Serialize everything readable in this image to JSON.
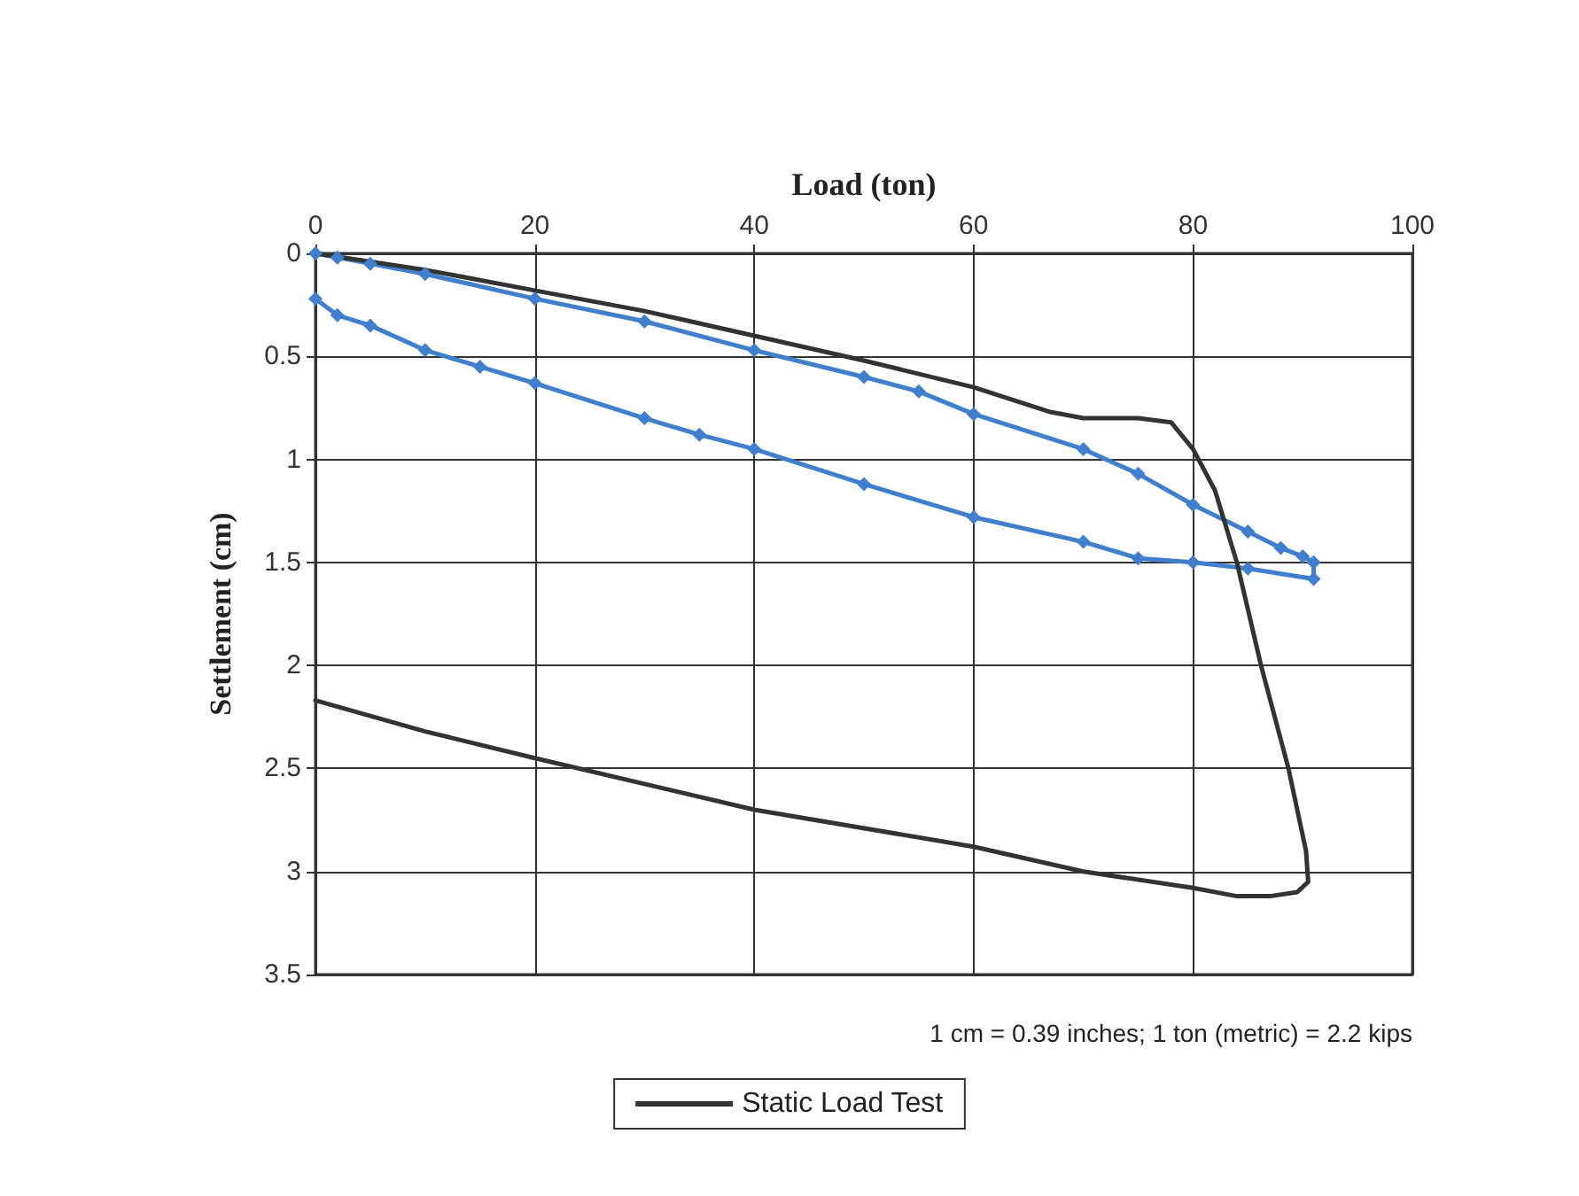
{
  "chart_data": {
    "type": "line",
    "xlabel": "Load (ton)",
    "ylabel": "Settlement (cm)",
    "xlim": [
      0,
      100
    ],
    "xticks": [
      0,
      20,
      40,
      60,
      80,
      100
    ],
    "ylim": [
      3.5,
      0
    ],
    "yticks": [
      0,
      0.5,
      1,
      1.5,
      2,
      2.5,
      3,
      3.5
    ],
    "grid": true,
    "legend": "bottom",
    "line_style": "solid",
    "annotations": [
      "1 cm = 0.39 inches; 1 ton (metric) = 2.2 kips"
    ],
    "series": [
      {
        "color": "#3f7fce",
        "marker": "diamond",
        "x": [
          0,
          2,
          5,
          10,
          20,
          30,
          40,
          50,
          55,
          60,
          70,
          75,
          80,
          85,
          88,
          90,
          91,
          91,
          85,
          80,
          75,
          70,
          60,
          50,
          40,
          35,
          30,
          20,
          15,
          10,
          5,
          2,
          0
        ],
        "values": [
          0,
          0.02,
          0.05,
          0.1,
          0.22,
          0.33,
          0.47,
          0.6,
          0.67,
          0.78,
          0.95,
          1.07,
          1.22,
          1.35,
          1.43,
          1.47,
          1.5,
          1.58,
          1.53,
          1.5,
          1.48,
          1.4,
          1.28,
          1.12,
          0.95,
          0.88,
          0.8,
          0.63,
          0.55,
          0.47,
          0.35,
          0.3,
          0.22
        ]
      },
      {
        "name": "Static Load Test",
        "color": "#333333",
        "marker": "none",
        "x": [
          0,
          10,
          20,
          30,
          40,
          50,
          60,
          67,
          70,
          75,
          78,
          80,
          82,
          84,
          86.2,
          88.7,
          90.3,
          90.5,
          89.5,
          87,
          84,
          80,
          70,
          60,
          40,
          20,
          10,
          0
        ],
        "values": [
          0,
          0.08,
          0.18,
          0.28,
          0.4,
          0.52,
          0.65,
          0.77,
          0.8,
          0.8,
          0.82,
          0.95,
          1.15,
          1.5,
          2.0,
          2.5,
          2.9,
          3.05,
          3.1,
          3.12,
          3.12,
          3.08,
          3.0,
          2.88,
          2.7,
          2.45,
          2.32,
          2.17
        ]
      }
    ]
  }
}
